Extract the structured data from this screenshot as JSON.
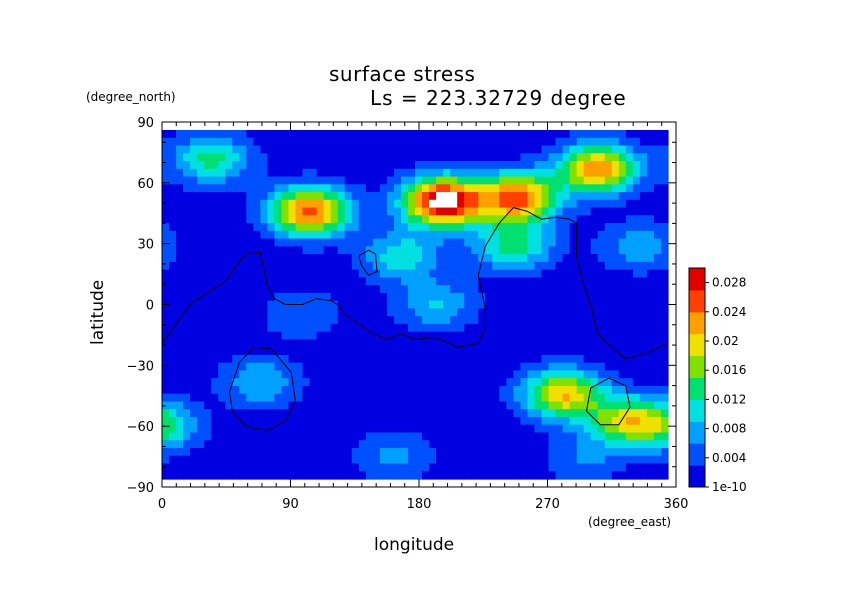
{
  "chart_data": {
    "type": "heatmap",
    "title": "surface stress",
    "subtitle": "Ls = 223.32729 degree",
    "xlabel": "longitude",
    "ylabel": "latitude",
    "x_unit": "(degree_east)",
    "y_unit": "(degree_north)",
    "xlim": [
      0,
      360
    ],
    "ylim": [
      -90,
      90
    ],
    "x_ticks": [
      0,
      90,
      180,
      270,
      360
    ],
    "y_ticks": [
      90,
      60,
      30,
      0,
      -30,
      -60,
      -90
    ],
    "colorbar": {
      "labels": [
        "0.028",
        "0.024",
        "0.02",
        "0.016",
        "0.012",
        "0.008",
        "0.004",
        "1e-10"
      ],
      "values": [
        0.028,
        0.024,
        0.02,
        0.016,
        0.012,
        0.008,
        0.004,
        1e-10
      ],
      "range": [
        0,
        0.03
      ],
      "colors": [
        "#0000e0",
        "#0050ff",
        "#00a0ff",
        "#00e0e0",
        "#00e070",
        "#80e000",
        "#f0e000",
        "#ffa000",
        "#ff4000",
        "#e00000"
      ]
    },
    "field_peaks": [
      {
        "lon": 200,
        "lat": 53,
        "value": 0.031
      },
      {
        "lon": 253,
        "lat": 55,
        "value": 0.024
      },
      {
        "lon": 105,
        "lat": 48,
        "value": 0.024
      },
      {
        "lon": 310,
        "lat": 70,
        "value": 0.022
      },
      {
        "lon": 285,
        "lat": -46,
        "value": 0.02
      },
      {
        "lon": 330,
        "lat": -60,
        "value": 0.016
      },
      {
        "lon": 250,
        "lat": 30,
        "value": 0.012
      },
      {
        "lon": 35,
        "lat": 75,
        "value": 0.012
      },
      {
        "lon": 170,
        "lat": 25,
        "value": 0.01
      },
      {
        "lon": 195,
        "lat": 0,
        "value": 0.008
      },
      {
        "lon": 70,
        "lat": -40,
        "value": 0.008
      },
      {
        "lon": 340,
        "lat": 30,
        "value": 0.007
      },
      {
        "lon": 100,
        "lat": -5,
        "value": 0.005
      },
      {
        "lon": 165,
        "lat": -78,
        "value": 0.006
      },
      {
        "lon": 0,
        "lat": -63,
        "value": 0.01
      },
      {
        "lon": 300,
        "lat": -80,
        "value": 0.005
      }
    ],
    "topography_contours": [
      [
        [
          0,
          -20
        ],
        [
          10,
          -10
        ],
        [
          20,
          0
        ],
        [
          30,
          5
        ],
        [
          45,
          12
        ],
        [
          55,
          22
        ],
        [
          60,
          26
        ],
        [
          70,
          27
        ],
        [
          72,
          20
        ],
        [
          75,
          10
        ],
        [
          80,
          3
        ],
        [
          88,
          0
        ],
        [
          100,
          0
        ],
        [
          110,
          3
        ],
        [
          120,
          2
        ],
        [
          125,
          0
        ],
        [
          130,
          -5
        ],
        [
          140,
          -10
        ],
        [
          150,
          -15
        ],
        [
          160,
          -18
        ],
        [
          170,
          -15
        ],
        [
          180,
          -18
        ],
        [
          195,
          -17
        ],
        [
          210,
          -22
        ],
        [
          225,
          -20
        ],
        [
          230,
          -12
        ],
        [
          230,
          -2
        ],
        [
          225,
          15
        ],
        [
          230,
          30
        ],
        [
          240,
          42
        ],
        [
          250,
          50
        ],
        [
          260,
          48
        ],
        [
          270,
          44
        ],
        [
          280,
          45
        ],
        [
          290,
          44
        ],
        [
          295,
          42
        ],
        [
          295,
          25
        ],
        [
          300,
          10
        ],
        [
          305,
          0
        ],
        [
          310,
          -15
        ],
        [
          320,
          -22
        ],
        [
          330,
          -28
        ],
        [
          345,
          -25
        ],
        [
          360,
          -20
        ]
      ],
      [
        [
          140,
          25
        ],
        [
          147,
          28
        ],
        [
          152,
          26
        ],
        [
          153,
          17
        ],
        [
          147,
          15
        ],
        [
          142,
          20
        ],
        [
          140,
          25
        ]
      ],
      [
        [
          48,
          -45
        ],
        [
          55,
          -30
        ],
        [
          65,
          -22
        ],
        [
          78,
          -23
        ],
        [
          92,
          -35
        ],
        [
          95,
          -50
        ],
        [
          88,
          -60
        ],
        [
          75,
          -65
        ],
        [
          60,
          -63
        ],
        [
          50,
          -55
        ],
        [
          48,
          -45
        ]
      ],
      [
        [
          302,
          -55
        ],
        [
          305,
          -43
        ],
        [
          318,
          -38
        ],
        [
          330,
          -42
        ],
        [
          333,
          -53
        ],
        [
          325,
          -62
        ],
        [
          312,
          -62
        ],
        [
          302,
          -55
        ]
      ]
    ]
  }
}
